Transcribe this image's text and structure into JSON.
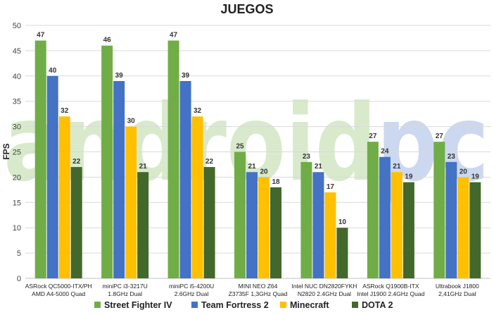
{
  "chart_data": {
    "type": "bar",
    "title": "JUEGOS",
    "ylabel": "FPS",
    "xlabel": "",
    "ylim": [
      0,
      50
    ],
    "yticks": [
      0,
      5,
      10,
      15,
      20,
      25,
      30,
      35,
      40,
      45,
      50
    ],
    "grid": true,
    "legend_position": "bottom",
    "categories": [
      [
        "ASRock QC5000-ITX/PH",
        "AMD A4-5000 Quad"
      ],
      [
        "miniPC i3-3217U",
        "1.8GHz Dual"
      ],
      [
        "miniPC i5-4200U",
        "2.6GHz Dual"
      ],
      [
        "MINI NEO Z64",
        "Z3735F 1,3GHz Quad"
      ],
      [
        "Intel NUC DN2820FYKH",
        "N2820 2.4GHz Dual"
      ],
      [
        "ASRock Q1900B-ITX",
        "Intel J1900 2.4GHz Quad"
      ],
      [
        "Ultrabook J1800",
        "2,41GHz Dual"
      ]
    ],
    "series": [
      {
        "name": "Street Fighter IV",
        "color": "#70ad47",
        "values": [
          47,
          46,
          47,
          25,
          23,
          27,
          27
        ]
      },
      {
        "name": "Team Fortress 2",
        "color": "#4472c4",
        "values": [
          40,
          39,
          39,
          21,
          21,
          24,
          23
        ]
      },
      {
        "name": "Minecraft",
        "color": "#ffc000",
        "values": [
          32,
          30,
          32,
          20,
          17,
          21,
          20
        ]
      },
      {
        "name": "DOTA 2",
        "color": "#43682b",
        "values": [
          22,
          21,
          22,
          18,
          10,
          19,
          19
        ]
      }
    ]
  },
  "watermark": {
    "text_main": "androidpc",
    "color_main": "#a9d18e",
    "color_accent": "#8faadc"
  }
}
